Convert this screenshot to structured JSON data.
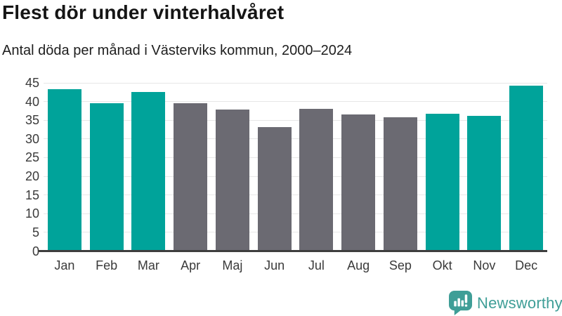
{
  "header": {
    "title": "Flest dör under vinterhalvåret",
    "subtitle": "Antal döda per månad i Västerviks kommun, 2000–2024"
  },
  "chart_data": {
    "type": "bar",
    "title": "Flest dör under vinterhalvåret",
    "subtitle": "Antal döda per månad i Västerviks kommun, 2000–2024",
    "categories": [
      "Jan",
      "Feb",
      "Mar",
      "Apr",
      "Maj",
      "Jun",
      "Jul",
      "Aug",
      "Sep",
      "Okt",
      "Nov",
      "Dec"
    ],
    "values": [
      43.4,
      39.5,
      42.5,
      39.6,
      37.8,
      33.1,
      38.1,
      36.5,
      35.7,
      36.8,
      36.1,
      44.3
    ],
    "winter_highlight": [
      true,
      true,
      true,
      false,
      false,
      false,
      false,
      false,
      false,
      true,
      true,
      true
    ],
    "xlabel": "",
    "ylabel": "",
    "ylim": [
      0,
      45
    ],
    "yticks": [
      0,
      5,
      10,
      15,
      20,
      25,
      30,
      35,
      40,
      45
    ],
    "grid": true,
    "legend": false,
    "colors": {
      "winter_bar": "#00a39a",
      "summer_bar": "#6b6a72",
      "gridline": "#e7e7e7",
      "axis_line": "#3e3e3e",
      "tick_text": "#3a3a3a"
    }
  },
  "footer": {
    "brand": "Newsworthy",
    "brand_color": "#3f9e97",
    "logo_icon": "newsworthy-speech-bubble-bar-chart-icon"
  }
}
